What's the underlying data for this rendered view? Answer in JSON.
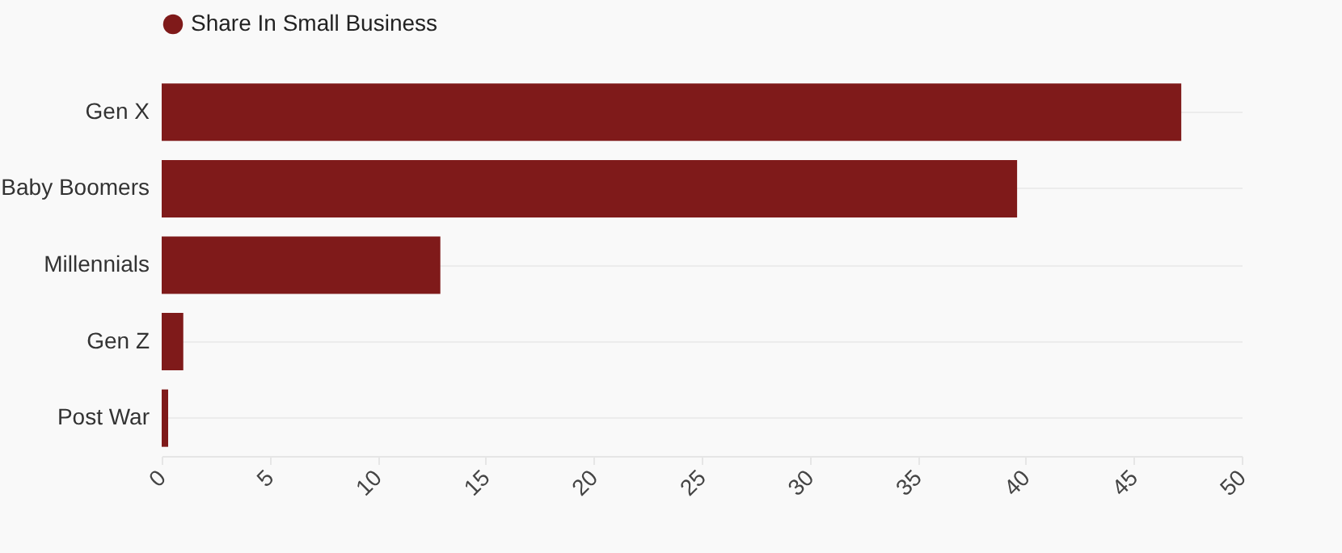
{
  "chart_data": {
    "type": "bar",
    "orientation": "horizontal",
    "categories": [
      "Gen X",
      "Baby Boomers",
      "Millennials",
      "Gen Z",
      "Post War"
    ],
    "series": [
      {
        "name": "Share In Small Business",
        "color": "#7f1a1a",
        "values": [
          47.2,
          39.6,
          12.9,
          1.0,
          0.3
        ]
      }
    ],
    "xlim": [
      0,
      50
    ],
    "xticks": [
      0,
      5,
      10,
      15,
      20,
      25,
      30,
      35,
      40,
      45,
      50
    ],
    "grid": "y",
    "legend": "top left"
  }
}
